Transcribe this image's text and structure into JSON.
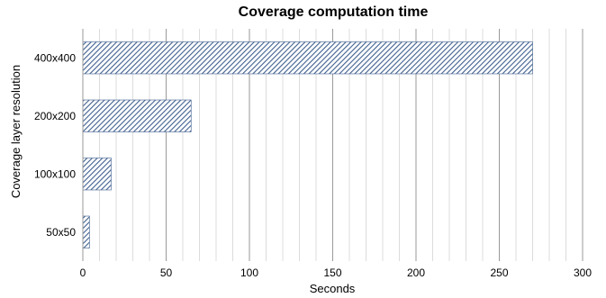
{
  "chart_data": {
    "type": "bar",
    "orientation": "horizontal",
    "title": "Coverage computation time",
    "xlabel": "Seconds",
    "ylabel": "Coverage layer resolution",
    "categories": [
      "400x400",
      "200x200",
      "100x100",
      "50x50"
    ],
    "values": [
      270,
      65,
      17,
      4
    ],
    "xlim": [
      0,
      300
    ],
    "xticks": [
      "0",
      "50",
      "100",
      "150",
      "200",
      "250",
      "300"
    ],
    "grid": true,
    "legend": "none",
    "bar_fill": "diagonal-hatch",
    "colors": {
      "bar": "#3f5f8f",
      "grid_major": "#9a9a9a",
      "grid_minor": "#dcdcdc"
    }
  }
}
